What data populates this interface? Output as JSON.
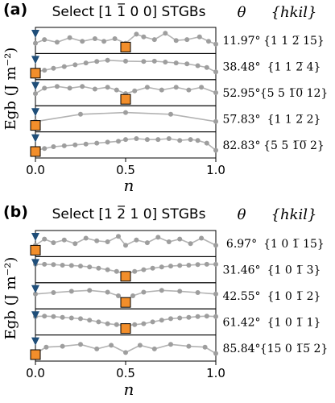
{
  "chart_data": [
    {
      "type": "line",
      "panel_label": "(a)",
      "title": "Select [1̅0] STGBs",
      "title_display": "Select [1 1̅ 0 0] STGBs",
      "xlabel": "n",
      "ylabel": "E_gb (J m⁻²)",
      "ylabel_display": "Egb (J m⁻²)",
      "xlim": [
        0.0,
        1.0
      ],
      "xticks": [
        "0.0",
        "0.5",
        "1.0"
      ],
      "column_headers": {
        "theta": "θ",
        "hkil": "{hkil}"
      },
      "series": [
        {
          "theta": "11.97°",
          "hkil": "{1 1 2̅ 15}",
          "x": [
            0.0,
            0.05,
            0.12,
            0.19,
            0.26,
            0.33,
            0.38,
            0.44,
            0.5,
            0.56,
            0.6,
            0.66,
            0.72,
            0.78,
            0.84,
            0.91,
            0.96,
            1.0
          ],
          "y": [
            0.35,
            0.55,
            0.4,
            0.65,
            0.45,
            0.6,
            0.45,
            0.6,
            0.35,
            0.85,
            0.7,
            0.55,
            0.9,
            0.5,
            0.55,
            0.7,
            0.45,
            0.3
          ],
          "markers": {
            "triangle_x": 0.0,
            "square_x": 0.5
          }
        },
        {
          "theta": "38.48°",
          "hkil": "{1 1 2̅ 4}",
          "x": [
            0.0,
            0.05,
            0.1,
            0.16,
            0.22,
            0.28,
            0.34,
            0.4,
            0.5,
            0.6,
            0.66,
            0.72,
            0.78,
            0.84,
            0.9,
            0.95,
            1.0
          ],
          "y": [
            0.2,
            0.3,
            0.4,
            0.5,
            0.6,
            0.7,
            0.78,
            0.85,
            0.8,
            0.78,
            0.8,
            0.75,
            0.7,
            0.65,
            0.55,
            0.45,
            0.2
          ],
          "markers": {
            "triangle_x": 0.0,
            "square_x": 0.0
          }
        },
        {
          "theta": "52.95°",
          "hkil": "{5 5 1̅0̅ 12}",
          "x": [
            0.0,
            0.05,
            0.12,
            0.19,
            0.26,
            0.33,
            0.4,
            0.45,
            0.5,
            0.55,
            0.62,
            0.7,
            0.78,
            0.85,
            0.92,
            1.0
          ],
          "y": [
            0.45,
            0.75,
            0.85,
            0.75,
            0.85,
            0.7,
            0.8,
            0.65,
            0.45,
            0.6,
            0.8,
            0.65,
            0.8,
            0.65,
            0.8,
            0.5
          ],
          "markers": {
            "triangle_x": 0.0,
            "square_x": 0.5
          }
        },
        {
          "theta": "57.83°",
          "hkil": "{1 1 2̅ 2}",
          "x": [
            0.0,
            0.25,
            0.5,
            0.75,
            1.0
          ],
          "y": [
            0.35,
            0.75,
            0.85,
            0.75,
            0.35
          ],
          "markers": {
            "triangle_x": 0.0,
            "square_x": 0.0
          }
        },
        {
          "theta": "82.83°",
          "hkil": "{5 5 1̅0̅ 2}",
          "x": [
            0.0,
            0.05,
            0.1,
            0.16,
            0.22,
            0.28,
            0.34,
            0.4,
            0.46,
            0.5,
            0.56,
            0.62,
            0.68,
            0.74,
            0.8,
            0.86,
            0.9,
            0.95,
            1.0
          ],
          "y": [
            0.2,
            0.3,
            0.4,
            0.45,
            0.5,
            0.55,
            0.6,
            0.65,
            0.7,
            0.8,
            0.85,
            0.8,
            0.8,
            0.85,
            0.75,
            0.8,
            0.75,
            0.6,
            0.2
          ],
          "markers": {
            "triangle_x": 0.0,
            "square_x": 0.0
          }
        }
      ]
    },
    {
      "type": "line",
      "panel_label": "(b)",
      "title": "Select [12̅0] STGBs",
      "title_display": "Select [1 2̅ 1 0] STGBs",
      "xlabel": "n",
      "ylabel": "E_gb (J m⁻²)",
      "ylabel_display": "Egb (J m⁻²)",
      "xlim": [
        0.0,
        1.0
      ],
      "xticks": [
        "0.0",
        "0.5",
        "1.0"
      ],
      "column_headers": {
        "theta": "θ",
        "hkil": "{hkil}"
      },
      "series": [
        {
          "theta": "6.97°",
          "hkil": "{1 0 1̅ 15}",
          "x": [
            0.0,
            0.05,
            0.1,
            0.16,
            0.22,
            0.28,
            0.34,
            0.4,
            0.46,
            0.5,
            0.56,
            0.62,
            0.68,
            0.74,
            0.8,
            0.86,
            0.92,
            1.0
          ],
          "y": [
            0.4,
            0.75,
            0.55,
            0.7,
            0.5,
            0.8,
            0.65,
            0.6,
            0.9,
            0.4,
            0.7,
            0.55,
            0.85,
            0.6,
            0.75,
            0.5,
            0.8,
            0.4
          ],
          "markers": {
            "triangle_x": 0.0,
            "square_x": 0.0
          }
        },
        {
          "theta": "31.46°",
          "hkil": "{1 0 1̅ 3}",
          "x": [
            0.0,
            0.05,
            0.1,
            0.15,
            0.2,
            0.25,
            0.3,
            0.35,
            0.4,
            0.45,
            0.5,
            0.55,
            0.6,
            0.65,
            0.7,
            0.75,
            0.8,
            0.85,
            0.9,
            0.95,
            1.0
          ],
          "y": [
            0.8,
            0.8,
            0.78,
            0.75,
            0.73,
            0.7,
            0.65,
            0.58,
            0.5,
            0.4,
            0.25,
            0.4,
            0.5,
            0.58,
            0.65,
            0.7,
            0.73,
            0.75,
            0.78,
            0.8,
            0.8
          ],
          "markers": {
            "triangle_x": 0.0,
            "square_x": 0.5
          }
        },
        {
          "theta": "42.55°",
          "hkil": "{1 0 1̅ 2}",
          "x": [
            0.0,
            0.1,
            0.2,
            0.3,
            0.4,
            0.46,
            0.5,
            0.54,
            0.6,
            0.7,
            0.8,
            0.9,
            1.0
          ],
          "y": [
            0.6,
            0.68,
            0.75,
            0.8,
            0.7,
            0.5,
            0.2,
            0.5,
            0.7,
            0.8,
            0.75,
            0.68,
            0.6
          ],
          "markers": {
            "triangle_x": 0.0,
            "square_x": 0.5
          }
        },
        {
          "theta": "61.42°",
          "hkil": "{1 0 1̅ 1}",
          "x": [
            0.0,
            0.05,
            0.1,
            0.15,
            0.2,
            0.25,
            0.3,
            0.35,
            0.4,
            0.45,
            0.5,
            0.55,
            0.6,
            0.65,
            0.7,
            0.75,
            0.8,
            0.85,
            0.9,
            0.95,
            1.0
          ],
          "y": [
            0.8,
            0.82,
            0.8,
            0.75,
            0.72,
            0.68,
            0.6,
            0.5,
            0.4,
            0.35,
            0.3,
            0.35,
            0.4,
            0.5,
            0.6,
            0.68,
            0.72,
            0.75,
            0.8,
            0.82,
            0.8
          ],
          "markers": {
            "triangle_x": 0.0,
            "square_x": 0.5
          }
        },
        {
          "theta": "85.84°",
          "hkil": "{15 0 1̅5̅ 2}",
          "x": [
            0.0,
            0.06,
            0.15,
            0.25,
            0.34,
            0.42,
            0.5,
            0.58,
            0.66,
            0.75,
            0.85,
            0.94,
            1.0
          ],
          "y": [
            0.2,
            0.55,
            0.6,
            0.7,
            0.45,
            0.65,
            0.25,
            0.65,
            0.45,
            0.7,
            0.6,
            0.55,
            0.2
          ],
          "markers": {
            "triangle_x": 0.0,
            "square_x": 0.0
          }
        }
      ]
    }
  ],
  "colors": {
    "line": "#b3b3b3",
    "point": "#9e9e9e",
    "triangle": "#1f4e79",
    "square": "#f28e2b",
    "square_edge": "#000000",
    "frame": "#000000"
  }
}
